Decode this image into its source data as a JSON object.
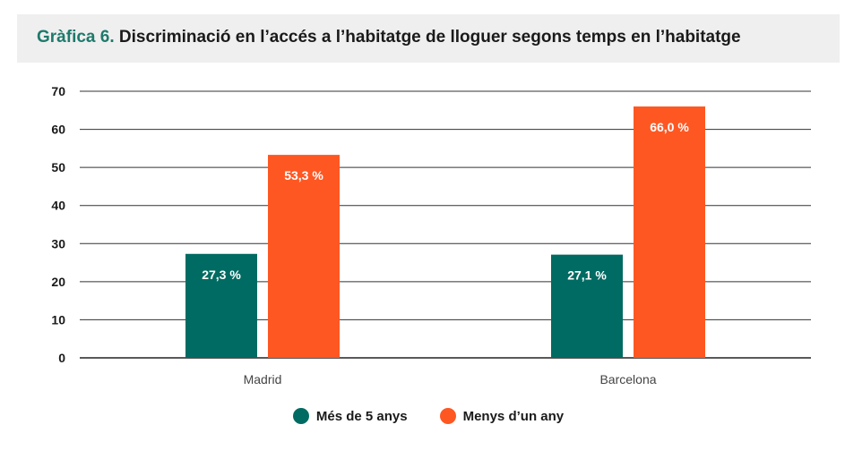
{
  "title": {
    "label": "Gràfica 6.",
    "text": "Discriminació en l’accés a l’habitatge de lloguer segons temps en l’habitatge"
  },
  "chart_data": {
    "type": "bar",
    "categories": [
      "Madrid",
      "Barcelona"
    ],
    "series": [
      {
        "name": "Més de 5 anys",
        "values": [
          27.3,
          27.1
        ],
        "labels": [
          "27,3 %",
          "27,1 %"
        ],
        "color": "#006b62"
      },
      {
        "name": "Menys d’un any",
        "values": [
          53.3,
          66.0
        ],
        "labels": [
          "53,3 %",
          "66,0 %"
        ],
        "color": "#ff5722"
      }
    ],
    "ylim": [
      0,
      70
    ],
    "yticks": [
      0,
      10,
      20,
      30,
      40,
      50,
      60,
      70
    ],
    "grid": true,
    "legend": "bottom"
  }
}
